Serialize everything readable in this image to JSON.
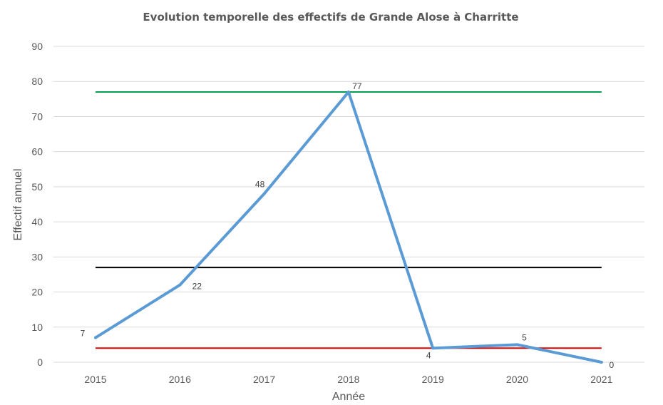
{
  "chart_data": {
    "type": "line",
    "title": "Evolution temporelle des effectifs de Grande Alose à Charritte",
    "xlabel": "Année",
    "ylabel": "Effectif annuel",
    "categories": [
      "2015",
      "2016",
      "2017",
      "2018",
      "2019",
      "2020",
      "2021"
    ],
    "ylim": [
      0,
      90
    ],
    "yticks": [
      0,
      10,
      20,
      30,
      40,
      50,
      60,
      70,
      80,
      90
    ],
    "grid": true,
    "legend": "none",
    "series": [
      {
        "values": [
          7,
          22,
          48,
          77,
          4,
          5,
          0
        ],
        "color": "#5B9BD5",
        "data_labels": [
          "7",
          "22",
          "48",
          "77",
          "4",
          "5",
          "0"
        ]
      }
    ],
    "reference_lines": [
      {
        "value": 77,
        "color": "#00A050"
      },
      {
        "value": 27,
        "color": "#000000"
      },
      {
        "value": 4,
        "color": "#E00000"
      }
    ]
  }
}
